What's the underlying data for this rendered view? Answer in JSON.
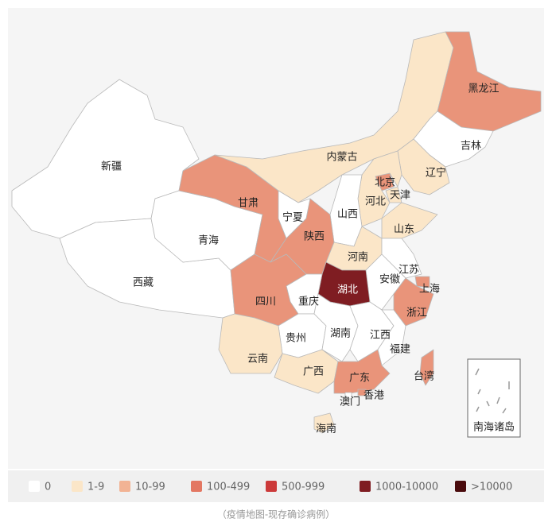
{
  "map": {
    "regions": [
      {
        "name": "新疆",
        "color": "#ffffff"
      },
      {
        "name": "西藏",
        "color": "#ffffff"
      },
      {
        "name": "青海",
        "color": "#ffffff"
      },
      {
        "name": "甘肃",
        "color": "#e9947a"
      },
      {
        "name": "内蒙古",
        "color": "#fbe6c8"
      },
      {
        "name": "黑龙江",
        "color": "#e9947a"
      },
      {
        "name": "吉林",
        "color": "#ffffff"
      },
      {
        "name": "辽宁",
        "color": "#fbe6c8"
      },
      {
        "name": "北京",
        "color": "#e9947a"
      },
      {
        "name": "天津",
        "color": "#fbe6c8"
      },
      {
        "name": "河北",
        "color": "#fbe6c8"
      },
      {
        "name": "山西",
        "color": "#ffffff"
      },
      {
        "name": "宁夏",
        "color": "#ffffff"
      },
      {
        "name": "陕西",
        "color": "#e9947a"
      },
      {
        "name": "山东",
        "color": "#fbe6c8"
      },
      {
        "name": "河南",
        "color": "#fbe6c8"
      },
      {
        "name": "江苏",
        "color": "#ffffff"
      },
      {
        "name": "安徽",
        "color": "#ffffff"
      },
      {
        "name": "上海",
        "color": "#e9947a"
      },
      {
        "name": "浙江",
        "color": "#e9947a"
      },
      {
        "name": "湖北",
        "color": "#7f1d22"
      },
      {
        "name": "重庆",
        "color": "#ffffff"
      },
      {
        "name": "四川",
        "color": "#e9947a"
      },
      {
        "name": "贵州",
        "color": "#ffffff"
      },
      {
        "name": "湖南",
        "color": "#ffffff"
      },
      {
        "name": "江西",
        "color": "#ffffff"
      },
      {
        "name": "福建",
        "color": "#ffffff"
      },
      {
        "name": "云南",
        "color": "#fbe6c8"
      },
      {
        "name": "广西",
        "color": "#fbe6c8"
      },
      {
        "name": "广东",
        "color": "#e9947a"
      },
      {
        "name": "香港",
        "color": "#e9947a"
      },
      {
        "name": "澳门",
        "color": "#ffffff"
      },
      {
        "name": "台湾",
        "color": "#e9947a"
      },
      {
        "name": "海南",
        "color": "#fbe6c8"
      }
    ],
    "inset_label": "南海诸岛",
    "legend": [
      {
        "label": "0",
        "color": "#ffffff"
      },
      {
        "label": "1-9",
        "color": "#fbe6c8"
      },
      {
        "label": "10-99",
        "color": "#f2b394"
      },
      {
        "label": "100-499",
        "color": "#e37762"
      },
      {
        "label": "500-999",
        "color": "#cc3a3a"
      },
      {
        "label": "1000-10000",
        "color": "#7f1d22"
      },
      {
        "label": ">10000",
        "color": "#4a0b0d"
      }
    ],
    "caption": "（疫情地图-现存确诊病例）"
  }
}
